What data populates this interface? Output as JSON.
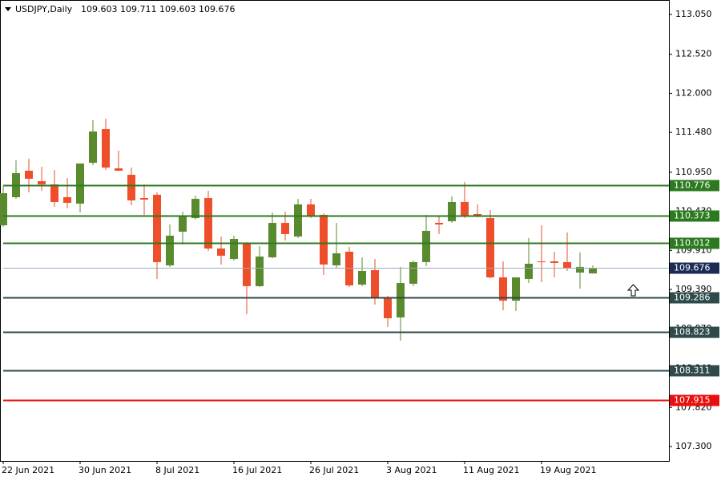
{
  "chart_data": {
    "type": "candlestick",
    "symbol": "USDJPY,Daily",
    "ohlc": [
      109.603,
      109.711,
      109.603,
      109.676
    ],
    "categories": [
      "22 Jun 2021",
      null,
      null,
      null,
      null,
      null,
      "30 Jun 2021",
      null,
      null,
      null,
      null,
      null,
      "8 Jul 2021",
      null,
      null,
      null,
      null,
      null,
      "16 Jul 2021",
      null,
      null,
      null,
      null,
      null,
      "26 Jul 2021",
      null,
      null,
      null,
      null,
      null,
      "3 Aug 2021",
      null,
      null,
      null,
      null,
      null,
      "11 Aug 2021",
      null,
      null,
      null,
      null,
      null,
      "19 Aug 2021",
      null,
      null,
      null,
      null
    ],
    "open": [
      110.244,
      110.618,
      110.97,
      110.831,
      110.788,
      110.618,
      110.532,
      111.076,
      111.524,
      111.002,
      110.916,
      110.607,
      110.65,
      109.711,
      110.159,
      110.34,
      110.607,
      109.935,
      109.796,
      109.999,
      109.434,
      109.818,
      110.276,
      110.095,
      110.522,
      110.383,
      109.711,
      109.892,
      109.455,
      109.647,
      109.284,
      109.018,
      109.466,
      109.754,
      110.276,
      110.298,
      110.554,
      110.394,
      110.34,
      109.551,
      109.241,
      109.53,
      109.764,
      109.764,
      109.754,
      109.615,
      109.603
    ],
    "high": [
      110.767,
      111.108,
      111.13,
      111.023,
      110.98,
      110.874,
      111.066,
      111.642,
      111.663,
      111.236,
      111.012,
      110.788,
      110.682,
      110.255,
      110.426,
      110.639,
      110.703,
      110.095,
      110.106,
      110.02,
      109.967,
      110.415,
      110.426,
      110.596,
      110.596,
      110.404,
      110.276,
      109.956,
      109.818,
      109.796,
      109.306,
      109.69,
      109.775,
      110.383,
      110.362,
      110.628,
      110.82,
      110.522,
      110.447,
      109.764,
      109.551,
      110.074,
      110.244,
      109.892,
      110.148,
      109.882,
      109.711
    ],
    "low": [
      110.223,
      110.596,
      110.682,
      110.703,
      110.49,
      110.468,
      110.415,
      111.044,
      110.98,
      110.97,
      110.511,
      110.383,
      109.53,
      109.69,
      109.988,
      110.319,
      109.903,
      109.722,
      109.775,
      109.06,
      109.423,
      109.807,
      110.042,
      110.074,
      110.34,
      109.583,
      109.668,
      109.423,
      109.434,
      109.188,
      108.89,
      108.708,
      109.434,
      109.7,
      110.127,
      110.276,
      110.34,
      110.351,
      109.54,
      109.113,
      109.103,
      109.476,
      109.487,
      109.551,
      109.636,
      109.402,
      109.603
    ],
    "close": [
      110.671,
      110.938,
      110.863,
      110.788,
      110.554,
      110.543,
      111.066,
      111.492,
      111.012,
      110.97,
      110.575,
      110.586,
      109.754,
      110.106,
      110.362,
      110.596,
      109.935,
      109.839,
      110.063,
      109.434,
      109.828,
      110.276,
      110.127,
      110.522,
      110.362,
      109.722,
      109.871,
      109.444,
      109.636,
      109.284,
      109.007,
      109.476,
      109.754,
      110.17,
      110.255,
      110.554,
      110.362,
      110.362,
      109.551,
      109.241,
      109.551,
      109.732,
      109.754,
      109.743,
      109.679,
      109.69,
      109.676
    ],
    "up_color": "#5a8a2e",
    "down_color": "#ee4e2a",
    "ylim": [
      107.108,
      113.242
    ],
    "yticks": [
      {
        "value": 113.05,
        "label": "113.050"
      },
      {
        "value": 112.52,
        "label": "112.520"
      },
      {
        "value": 112.0,
        "label": "112.000"
      },
      {
        "value": 111.48,
        "label": "111.480"
      },
      {
        "value": 110.95,
        "label": "110.950"
      },
      {
        "value": 110.43,
        "label": "110.430"
      },
      {
        "value": 109.91,
        "label": "109.910"
      },
      {
        "value": 109.39,
        "label": "109.390"
      },
      {
        "value": 108.87,
        "label": "108.870"
      },
      {
        "value": 108.34,
        "label": "108.340"
      },
      {
        "value": 107.82,
        "label": "107.820"
      },
      {
        "value": 107.3,
        "label": "107.300"
      }
    ],
    "levels": [
      {
        "value": 110.776,
        "color": "#2c7a1f"
      },
      {
        "value": 110.373,
        "color": "#2c7a1f"
      },
      {
        "value": 110.012,
        "color": "#2c7a1f"
      },
      {
        "value": 109.286,
        "color": "#2f4a4a"
      },
      {
        "value": 108.823,
        "color": "#2f4a4a"
      },
      {
        "value": 108.311,
        "color": "#2f4a4a"
      },
      {
        "value": 107.915,
        "color": "#e8100f"
      }
    ],
    "bid": {
      "value": 109.676,
      "line_color": "#9aa9c0",
      "box_color": "#1c2a55"
    }
  }
}
